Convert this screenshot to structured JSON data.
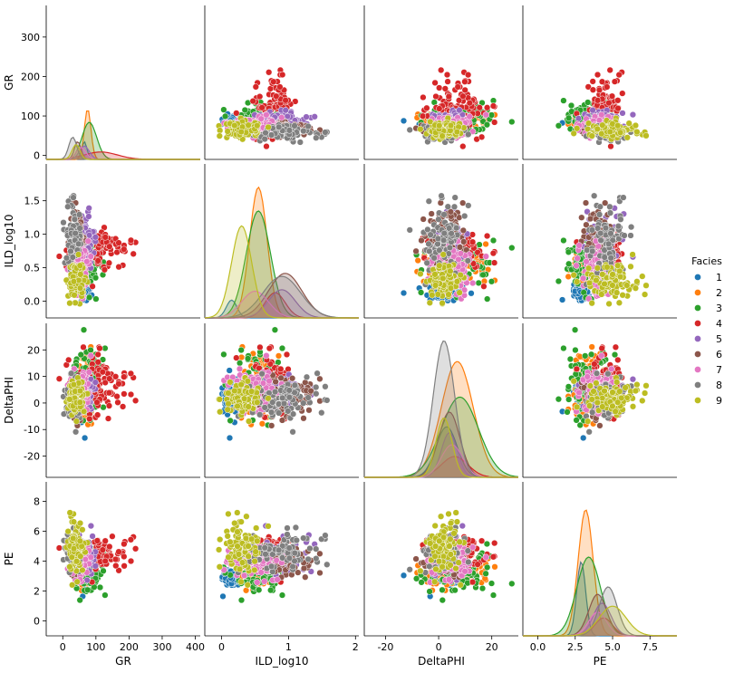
{
  "chart_data": {
    "type": "scatter",
    "kind": "pairplot",
    "variables": [
      "GR",
      "ILD_log10",
      "DeltaPHI",
      "PE"
    ],
    "axes": {
      "GR": {
        "ticks": [
          0,
          100,
          200,
          300,
          400
        ],
        "range": [
          -50,
          415
        ]
      },
      "ILD_log10": {
        "ticks": [
          0.0,
          0.5,
          1.0,
          1.5
        ],
        "xticks": [
          0,
          1,
          2
        ],
        "range": [
          -0.25,
          2.05
        ]
      },
      "DeltaPHI": {
        "ticks": [
          -20,
          -10,
          0,
          10,
          20
        ],
        "xticks": [
          -20,
          0,
          20
        ],
        "range": [
          -28,
          30
        ]
      },
      "PE": {
        "ticks": [
          0,
          2,
          4,
          6,
          8
        ],
        "xticks": [
          0.0,
          2.5,
          5.0,
          7.5
        ],
        "range": [
          -1,
          9.3
        ]
      }
    },
    "legend": {
      "title": "Facies",
      "placement": "right",
      "entries": [
        "1",
        "2",
        "3",
        "4",
        "5",
        "6",
        "7",
        "8",
        "9"
      ]
    },
    "series": [
      {
        "name": "1",
        "color": "#1f77b4",
        "GR": [
          65,
          8
        ],
        "ILD_log10": [
          0.15,
          0.08
        ],
        "DeltaPHI": [
          3,
          4
        ],
        "PE": [
          2.9,
          0.3
        ]
      },
      {
        "name": "2",
        "color": "#ff7f0e",
        "GR": [
          75,
          10
        ],
        "ILD_log10": [
          0.55,
          0.13
        ],
        "DeltaPHI": [
          7,
          6
        ],
        "PE": [
          3.2,
          0.5
        ]
      },
      {
        "name": "3",
        "color": "#2ca02c",
        "GR": [
          80,
          22
        ],
        "ILD_log10": [
          0.55,
          0.18
        ],
        "DeltaPHI": [
          8,
          7
        ],
        "PE": [
          3.4,
          0.8
        ]
      },
      {
        "name": "4",
        "color": "#d62728",
        "GR": [
          115,
          50
        ],
        "ILD_log10": [
          0.8,
          0.15
        ],
        "DeltaPHI": [
          6,
          5
        ],
        "PE": [
          4.4,
          0.6
        ]
      },
      {
        "name": "5",
        "color": "#9467bd",
        "GR": [
          65,
          15
        ],
        "ILD_log10": [
          0.9,
          0.2
        ],
        "DeltaPHI": [
          4,
          3
        ],
        "PE": [
          4.3,
          0.6
        ]
      },
      {
        "name": "6",
        "color": "#8c564b",
        "GR": [
          45,
          10
        ],
        "ILD_log10": [
          0.95,
          0.25
        ],
        "DeltaPHI": [
          4,
          4
        ],
        "PE": [
          4.0,
          0.6
        ]
      },
      {
        "name": "7",
        "color": "#e377c2",
        "GR": [
          55,
          15
        ],
        "ILD_log10": [
          0.5,
          0.2
        ],
        "DeltaPHI": [
          5,
          4
        ],
        "PE": [
          4.0,
          0.6
        ]
      },
      {
        "name": "8",
        "color": "#7f7f7f",
        "GR": [
          30,
          12
        ],
        "ILD_log10": [
          0.9,
          0.28
        ],
        "DeltaPHI": [
          2,
          4
        ],
        "PE": [
          4.7,
          0.6
        ]
      },
      {
        "name": "9",
        "color": "#bcbd22",
        "GR": [
          40,
          12
        ],
        "ILD_log10": [
          0.3,
          0.15
        ],
        "DeltaPHI": [
          2,
          3
        ],
        "PE": [
          5.0,
          0.9
        ]
      }
    ],
    "diag_peaks": {
      "GR": {
        "1": 0.12,
        "2": 0.34,
        "3": 0.25,
        "4": 0.05,
        "5": 0.09,
        "6": 0.12,
        "7": 0.08,
        "8": 0.15,
        "9": 0.1
      },
      "ILD_log10": {
        "1": 0.12,
        "2": 0.88,
        "3": 0.72,
        "4": 0.17,
        "5": 0.19,
        "6": 0.3,
        "7": 0.18,
        "8": 0.28,
        "9": 0.62
      },
      "DeltaPHI": {
        "1": 0.34,
        "2": 0.78,
        "3": 0.54,
        "4": 0.14,
        "5": 0.3,
        "6": 0.44,
        "7": 0.22,
        "8": 0.92,
        "9": 0.4
      },
      "PE": {
        "1": 0.5,
        "2": 0.85,
        "3": 0.53,
        "4": 0.12,
        "5": 0.22,
        "6": 0.28,
        "7": 0.16,
        "8": 0.33,
        "9": 0.2
      }
    }
  }
}
